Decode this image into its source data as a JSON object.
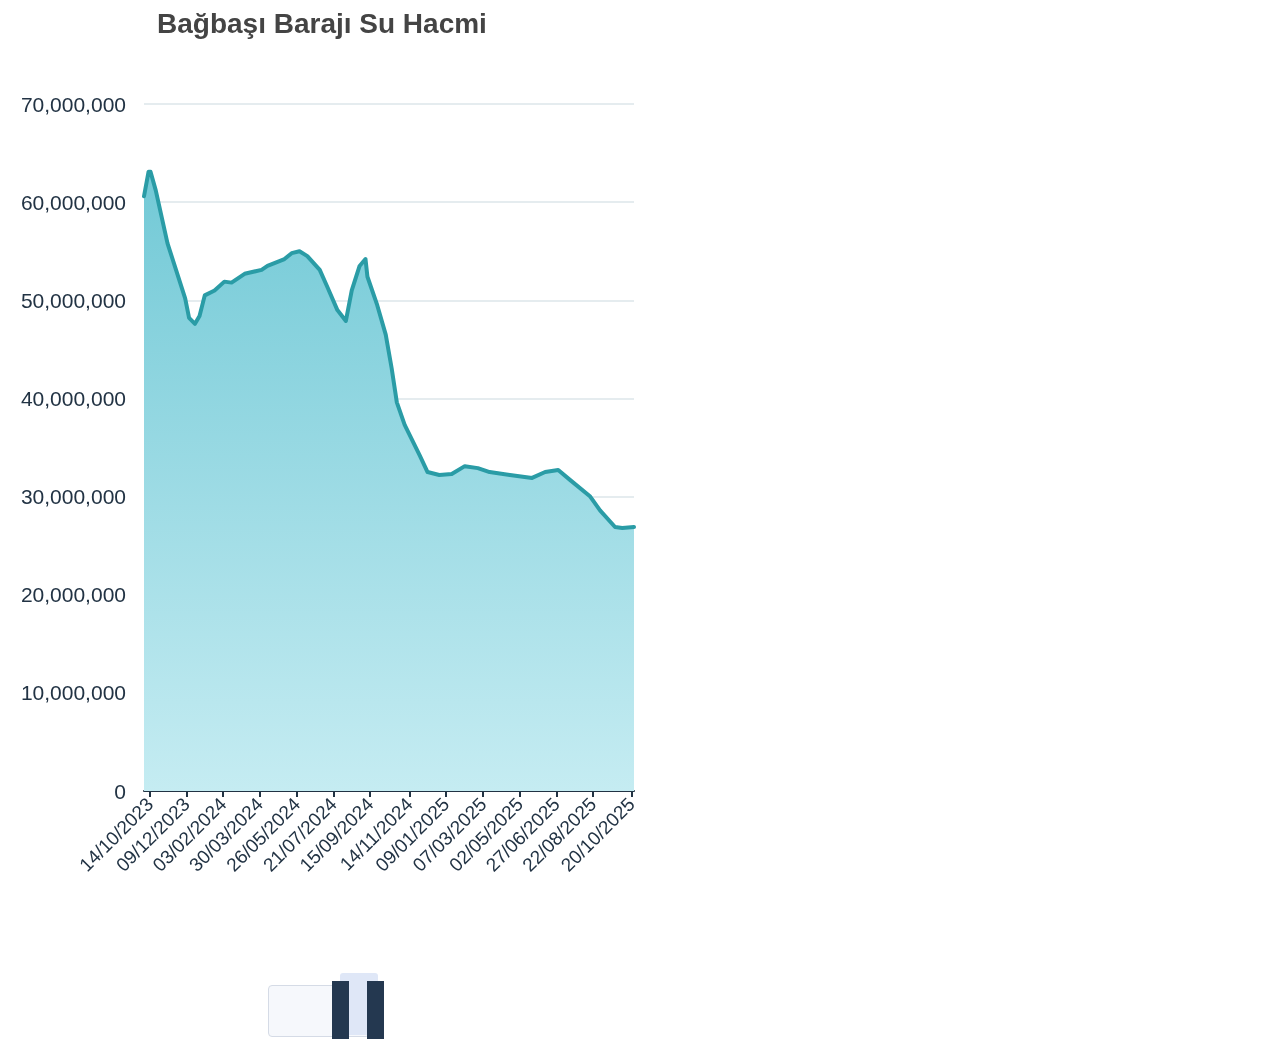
{
  "chart_data": {
    "type": "area",
    "title": "Bağbaşı Barajı Su Hacmi",
    "x": [
      "2023-10-05",
      "2023-10-12",
      "2023-10-15",
      "2023-10-23",
      "2023-11-10",
      "2023-12-07",
      "2023-12-13",
      "2023-12-22",
      "2023-12-29",
      "2024-01-06",
      "2024-01-21",
      "2024-02-05",
      "2024-02-16",
      "2024-03-07",
      "2024-04-02",
      "2024-04-11",
      "2024-05-07",
      "2024-05-18",
      "2024-05-30",
      "2024-06-11",
      "2024-06-30",
      "2024-07-12",
      "2024-07-27",
      "2024-08-09",
      "2024-08-18",
      "2024-08-30",
      "2024-09-08",
      "2024-09-11",
      "2024-09-26",
      "2024-10-09",
      "2024-10-18",
      "2024-10-26",
      "2024-11-07",
      "2024-11-30",
      "2024-12-12",
      "2024-12-30",
      "2025-01-18",
      "2025-02-07",
      "2025-02-27",
      "2025-03-17",
      "2025-04-17",
      "2025-05-21",
      "2025-06-10",
      "2025-06-30",
      "2025-07-18",
      "2025-08-18",
      "2025-09-02",
      "2025-09-25",
      "2025-10-06",
      "2025-10-24"
    ],
    "series": [
      {
        "color": "#2a9ca6",
        "values": [
          60600000,
          63100000,
          63100000,
          61200000,
          55800000,
          50200000,
          48200000,
          47600000,
          48400000,
          50500000,
          51000000,
          51900000,
          51800000,
          52700000,
          53100000,
          53500000,
          54200000,
          54800000,
          55000000,
          54500000,
          53100000,
          51300000,
          49000000,
          47900000,
          51000000,
          53500000,
          54200000,
          52400000,
          49500000,
          46500000,
          43100000,
          39600000,
          37300000,
          34200000,
          32500000,
          32200000,
          32300000,
          33100000,
          32900000,
          32500000,
          32200000,
          31900000,
          32500000,
          32700000,
          31700000,
          30000000,
          28600000,
          26900000,
          26800000,
          26900000
        ]
      }
    ],
    "xlim": [
      "2023-10-05",
      "2025-10-24"
    ],
    "xticks": [
      {
        "value": "2023-10-14",
        "label": "14/10/2023"
      },
      {
        "value": "2023-12-09",
        "label": "09/12/2023"
      },
      {
        "value": "2024-02-03",
        "label": "03/02/2024"
      },
      {
        "value": "2024-03-30",
        "label": "30/03/2024"
      },
      {
        "value": "2024-05-26",
        "label": "26/05/2024"
      },
      {
        "value": "2024-07-21",
        "label": "21/07/2024"
      },
      {
        "value": "2024-09-15",
        "label": "15/09/2024"
      },
      {
        "value": "2024-11-14",
        "label": "14/11/2024"
      },
      {
        "value": "2025-01-09",
        "label": "09/01/2025"
      },
      {
        "value": "2025-03-07",
        "label": "07/03/2025"
      },
      {
        "value": "2025-05-02",
        "label": "02/05/2025"
      },
      {
        "value": "2025-06-27",
        "label": "27/06/2025"
      },
      {
        "value": "2025-08-22",
        "label": "22/08/2025"
      },
      {
        "value": "2025-10-20",
        "label": "20/10/2025"
      }
    ],
    "ylim": [
      0,
      70000000
    ],
    "yticks": [
      {
        "value": 0,
        "label": "0"
      },
      {
        "value": 10000000,
        "label": "10,000,000"
      },
      {
        "value": 20000000,
        "label": "20,000,000"
      },
      {
        "value": 30000000,
        "label": "30,000,000"
      },
      {
        "value": 40000000,
        "label": "40,000,000"
      },
      {
        "value": 50000000,
        "label": "50,000,000"
      },
      {
        "value": 60000000,
        "label": "60,000,000"
      },
      {
        "value": 70000000,
        "label": "70,000,000"
      }
    ],
    "grid": "y",
    "marker": "none",
    "line_style": "solid"
  }
}
